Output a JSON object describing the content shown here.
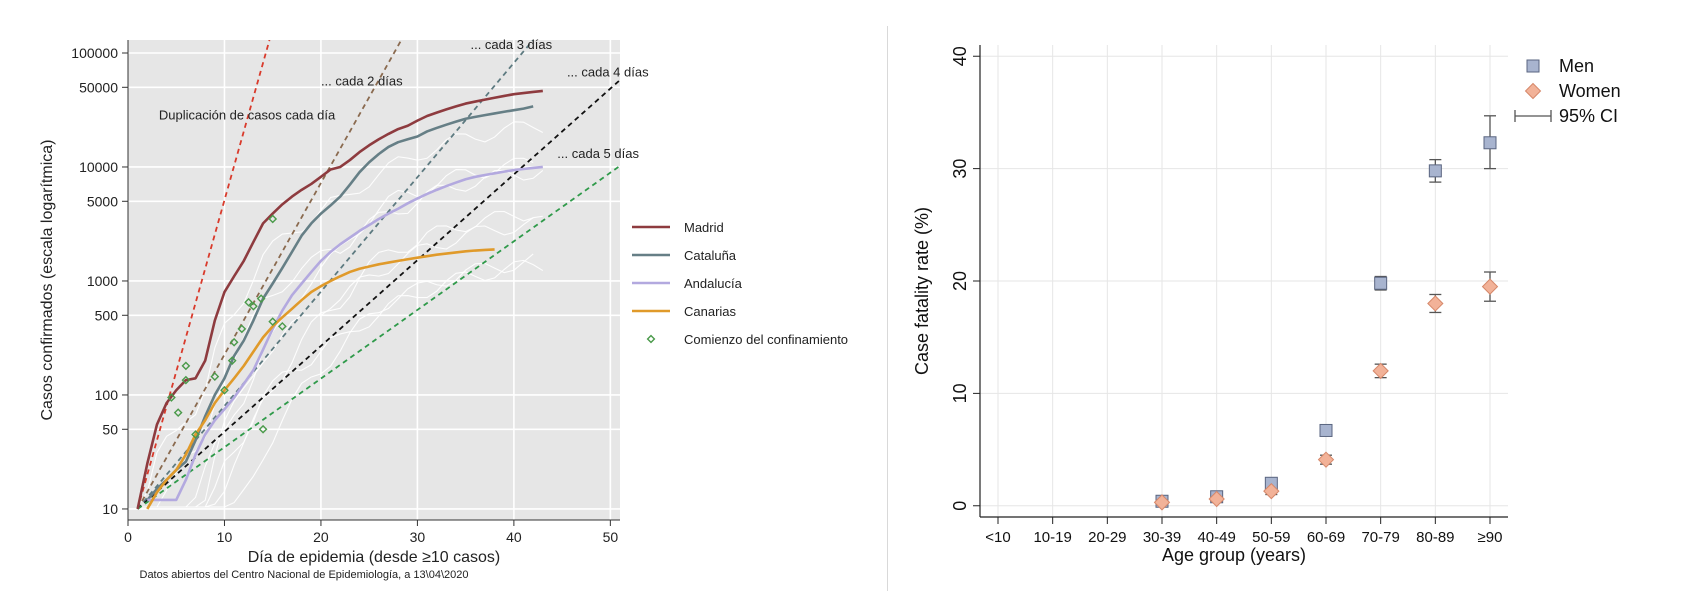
{
  "chart_data": [
    {
      "type": "line",
      "title": "",
      "xlabel": "Día de epidemia (desde ≥10 casos)",
      "ylabel": "Casos confirmados (escala logarítmica)",
      "scale_y": "log",
      "xlim": [
        0,
        51
      ],
      "ylim": [
        8,
        130000
      ],
      "xticks": [
        0,
        10,
        20,
        30,
        40,
        50
      ],
      "yticks": [
        10,
        50,
        100,
        500,
        1000,
        5000,
        10000,
        50000,
        100000
      ],
      "grid": true,
      "background": "#e6e6e6",
      "legend_position": "right",
      "footnote": "Datos abiertos del Centro Nacional de Epidemiología, a 13\\04\\2020",
      "reference_lines": [
        {
          "label": "Duplicación de casos cada día",
          "doubling_days": 1,
          "color": "#d93a2b",
          "label_x": 3.2,
          "label_y": 26000
        },
        {
          "label": "... cada 2 días",
          "doubling_days": 2,
          "color": "#8a6a4f",
          "label_x": 20,
          "label_y": 52000
        },
        {
          "label": "... cada 3 días",
          "doubling_days": 3,
          "color": "#5d7a80",
          "label_x": 35.5,
          "label_y": 108000
        },
        {
          "label": "... cada 4 días",
          "doubling_days": 4,
          "color": "#111111",
          "label_x": 45.5,
          "label_y": 62000
        },
        {
          "label": "... cada 5 días",
          "doubling_days": 5,
          "color": "#2f9a4a",
          "label_x": 44.5,
          "label_y": 12000
        }
      ],
      "series": [
        {
          "name": "Madrid",
          "color": "#8e3b3f",
          "x": [
            1,
            2,
            3,
            4,
            5,
            6,
            7,
            8,
            9,
            10,
            11,
            12,
            13,
            14,
            15,
            16,
            17,
            18,
            19,
            20,
            21,
            22,
            23,
            24,
            25,
            26,
            27,
            28,
            29,
            30,
            31,
            32,
            33,
            34,
            35,
            36,
            37,
            38,
            39,
            40,
            41,
            42,
            43
          ],
          "y": [
            10,
            25,
            55,
            85,
            110,
            135,
            140,
            200,
            450,
            800,
            1100,
            1500,
            2200,
            3200,
            3900,
            4700,
            5500,
            6300,
            7100,
            8200,
            9500,
            10000,
            11500,
            13500,
            15500,
            17500,
            19500,
            21500,
            23000,
            25500,
            28000,
            30000,
            32000,
            34000,
            36000,
            37500,
            39000,
            40500,
            42000,
            43500,
            44500,
            45500,
            46500
          ]
        },
        {
          "name": "Cataluña",
          "color": "#667f86",
          "x": [
            2,
            3,
            4,
            5,
            6,
            7,
            8,
            9,
            10,
            11,
            12,
            13,
            14,
            15,
            16,
            17,
            18,
            19,
            20,
            21,
            22,
            23,
            24,
            25,
            26,
            27,
            28,
            29,
            30,
            31,
            32,
            33,
            34,
            35,
            36,
            37,
            38,
            39,
            40,
            41,
            42
          ],
          "y": [
            12,
            15,
            18,
            22,
            26,
            40,
            65,
            100,
            140,
            220,
            300,
            450,
            700,
            950,
            1300,
            1800,
            2500,
            3200,
            3900,
            4600,
            5500,
            7000,
            9000,
            11000,
            13000,
            15000,
            16500,
            17500,
            18500,
            20500,
            22000,
            23500,
            25000,
            26500,
            27500,
            28500,
            29500,
            30500,
            31500,
            32500,
            34000
          ]
        },
        {
          "name": "Andalucía",
          "color": "#b3a9df",
          "x": [
            2,
            3,
            4,
            5,
            6,
            7,
            8,
            9,
            10,
            11,
            12,
            13,
            14,
            15,
            16,
            17,
            18,
            19,
            20,
            21,
            22,
            23,
            24,
            25,
            26,
            27,
            28,
            29,
            30,
            31,
            32,
            33,
            34,
            35,
            36,
            37,
            38,
            39,
            40,
            41,
            42,
            43
          ],
          "y": [
            12,
            12,
            12,
            12,
            18,
            30,
            45,
            60,
            75,
            95,
            125,
            165,
            250,
            380,
            550,
            750,
            950,
            1200,
            1500,
            1800,
            2100,
            2400,
            2750,
            3100,
            3500,
            3900,
            4300,
            4800,
            5300,
            5800,
            6300,
            6800,
            7300,
            7800,
            8200,
            8500,
            8800,
            9100,
            9400,
            9600,
            9800,
            10000
          ]
        },
        {
          "name": "Canarias",
          "color": "#e09a2a",
          "x": [
            2,
            3,
            4,
            5,
            6,
            7,
            8,
            9,
            10,
            11,
            12,
            13,
            14,
            15,
            16,
            17,
            18,
            19,
            20,
            21,
            22,
            23,
            24,
            25,
            26,
            27,
            28,
            29,
            30,
            31,
            32,
            33,
            34,
            35,
            36,
            37,
            38
          ],
          "y": [
            10,
            14,
            18,
            22,
            30,
            45,
            60,
            85,
            110,
            140,
            180,
            240,
            320,
            400,
            480,
            570,
            680,
            800,
            900,
            1000,
            1100,
            1200,
            1280,
            1340,
            1400,
            1450,
            1500,
            1550,
            1600,
            1650,
            1700,
            1740,
            1780,
            1820,
            1850,
            1870,
            1890
          ]
        }
      ],
      "other_regions_note": "white lines",
      "confinement_points": {
        "name": "Comienzo del confinamiento",
        "color": "#4a9a4a",
        "x": [
          4.5,
          5.2,
          6,
          6,
          7,
          9,
          10,
          10.8,
          11,
          11.8,
          12.5,
          13,
          13.8,
          14,
          15,
          15,
          16
        ],
        "y": [
          95,
          70,
          180,
          135,
          45,
          145,
          110,
          200,
          290,
          380,
          650,
          600,
          700,
          50,
          440,
          3500,
          400
        ]
      }
    },
    {
      "type": "scatter",
      "title": "",
      "xlabel": "Age group (years)",
      "ylabel": "Case fatality rate (%)",
      "categories": [
        "<10",
        "10-19",
        "20-29",
        "30-39",
        "40-49",
        "50-59",
        "60-69",
        "70-79",
        "80-89",
        "≥90"
      ],
      "ylim": [
        -1,
        41
      ],
      "yticks": [
        0,
        10,
        20,
        30,
        40
      ],
      "grid": true,
      "legend_position": "top-right",
      "ci_legend_label": "95% CI",
      "series": [
        {
          "name": "Men",
          "marker": "square",
          "color": "#a8b4cf",
          "values": [
            null,
            null,
            null,
            0.4,
            0.8,
            2.0,
            6.7,
            19.8,
            29.8,
            32.3
          ],
          "ci_low": [
            null,
            null,
            null,
            0.2,
            0.6,
            1.6,
            6.3,
            19.2,
            28.8,
            30.0
          ],
          "ci_high": [
            null,
            null,
            null,
            0.6,
            1.0,
            2.4,
            7.1,
            20.4,
            30.8,
            34.7
          ]
        },
        {
          "name": "Women",
          "marker": "diamond",
          "color": "#f2b298",
          "values": [
            null,
            null,
            null,
            0.3,
            0.6,
            1.3,
            4.1,
            12.0,
            18.0,
            19.5
          ],
          "ci_low": [
            null,
            null,
            null,
            0.2,
            0.4,
            1.0,
            3.7,
            11.4,
            17.2,
            18.2
          ],
          "ci_high": [
            null,
            null,
            null,
            0.4,
            0.8,
            1.6,
            4.5,
            12.6,
            18.8,
            20.8
          ]
        }
      ]
    }
  ]
}
